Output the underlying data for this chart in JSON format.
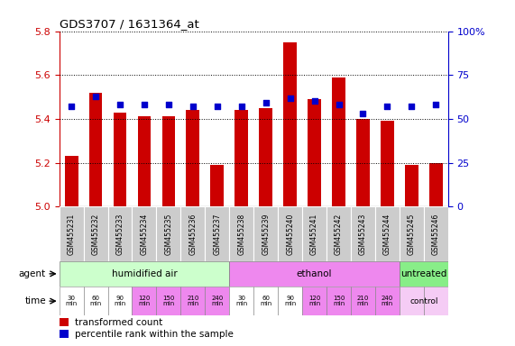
{
  "title": "GDS3707 / 1631364_at",
  "samples": [
    "GSM455231",
    "GSM455232",
    "GSM455233",
    "GSM455234",
    "GSM455235",
    "GSM455236",
    "GSM455237",
    "GSM455238",
    "GSM455239",
    "GSM455240",
    "GSM455241",
    "GSM455242",
    "GSM455243",
    "GSM455244",
    "GSM455245",
    "GSM455246"
  ],
  "transformed_count": [
    5.23,
    5.52,
    5.43,
    5.41,
    5.41,
    5.44,
    5.19,
    5.44,
    5.45,
    5.75,
    5.49,
    5.59,
    5.4,
    5.39,
    5.19,
    5.2
  ],
  "percentile_rank": [
    57,
    63,
    58,
    58,
    58,
    57,
    57,
    57,
    59,
    62,
    60,
    58,
    53,
    57,
    57,
    58
  ],
  "bar_bottom": 5.0,
  "ylim": [
    5.0,
    5.8
  ],
  "yticks_left": [
    5.0,
    5.2,
    5.4,
    5.6,
    5.8
  ],
  "yticks_right": [
    0,
    25,
    50,
    75,
    100
  ],
  "percentile_ylim": [
    0,
    100
  ],
  "bar_color": "#cc0000",
  "dot_color": "#0000cc",
  "dot_size": 25,
  "grid_color": "#000000",
  "agent_groups": [
    {
      "label": "humidified air",
      "start": 0,
      "end": 7,
      "color": "#ccffcc"
    },
    {
      "label": "ethanol",
      "start": 7,
      "end": 14,
      "color": "#ee88ee"
    },
    {
      "label": "untreated",
      "start": 14,
      "end": 16,
      "color": "#88ee88"
    }
  ],
  "time_labels": [
    "30\nmin",
    "60\nmin",
    "90\nmin",
    "120\nmin",
    "150\nmin",
    "210\nmin",
    "240\nmin",
    "30\nmin",
    "60\nmin",
    "90\nmin",
    "120\nmin",
    "150\nmin",
    "210\nmin",
    "240\nmin",
    "control",
    ""
  ],
  "time_colors": [
    "#ffffff",
    "#ffffff",
    "#ffffff",
    "#ee88ee",
    "#ee88ee",
    "#ee88ee",
    "#ee88ee",
    "#ffffff",
    "#ffffff",
    "#ffffff",
    "#ee88ee",
    "#ee88ee",
    "#ee88ee",
    "#ee88ee",
    "#f5ccf5",
    "#f5ccf5"
  ],
  "time_row_label": "time",
  "agent_row_label": "agent",
  "legend_bar_label": "transformed count",
  "legend_dot_label": "percentile rank within the sample",
  "background_color": "#ffffff",
  "left_color": "#cc0000",
  "right_color": "#0000cc",
  "sample_bg": "#cccccc",
  "sample_fontsize": 5.5,
  "bar_width": 0.55
}
